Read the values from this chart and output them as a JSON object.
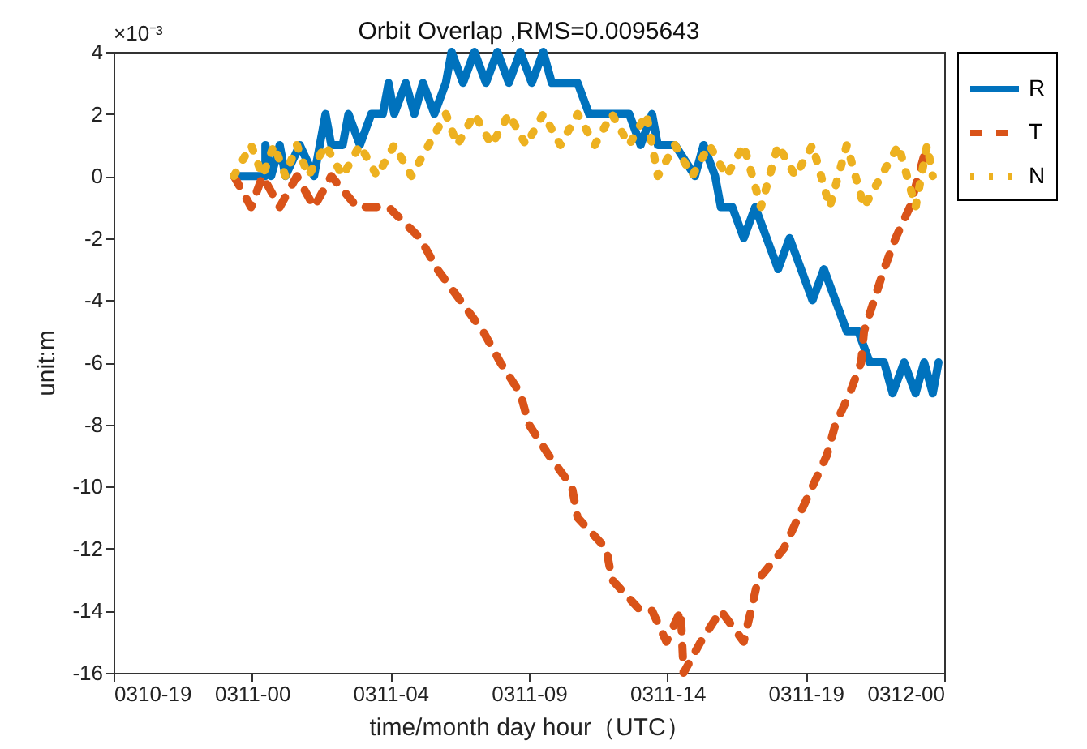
{
  "chart_data": {
    "type": "line",
    "title": "Orbit Overlap ,RMS=0.0095643",
    "xlabel": "time/month day hour（UTC）",
    "ylabel": "unit:m",
    "annotations": [
      "×10⁻³"
    ],
    "xlim": [
      "--03-10T19:00",
      "--03-12T00:00"
    ],
    "xticks": [
      {
        "value": "--03-10T19:00",
        "label": "0310-19"
      },
      {
        "value": "--03-10T23:50",
        "label": "0311-00"
      },
      {
        "value": "--03-11T04:40",
        "label": "0311-04"
      },
      {
        "value": "--03-11T09:30",
        "label": "0311-09"
      },
      {
        "value": "--03-11T14:20",
        "label": "0311-14"
      },
      {
        "value": "--03-11T19:10",
        "label": "0311-19"
      },
      {
        "value": "--03-12T00:00",
        "label": "0312-00"
      }
    ],
    "ylim": [
      -16,
      4
    ],
    "yticks": [
      -16,
      -14,
      -12,
      -10,
      -8,
      -6,
      -4,
      -2,
      0,
      2,
      4
    ],
    "legend": "top right",
    "series": [
      {
        "name": "R",
        "color": "#0072bd",
        "line_style": "solid",
        "x": [
          "--03-10T23:12",
          "--03-11T00:18",
          "--03-11T00:18",
          "--03-11T00:30",
          "--03-11T00:48",
          "--03-11T01:00",
          "--03-11T01:30",
          "--03-11T02:00",
          "--03-11T02:24",
          "--03-11T02:36",
          "--03-11T03:00",
          "--03-11T03:12",
          "--03-11T03:36",
          "--03-11T04:00",
          "--03-11T04:24",
          "--03-11T04:36",
          "--03-11T04:48",
          "--03-11T05:12",
          "--03-11T05:30",
          "--03-11T05:48",
          "--03-11T06:12",
          "--03-11T06:36",
          "--03-11T06:48",
          "--03-11T07:12",
          "--03-11T07:36",
          "--03-11T08:00",
          "--03-11T08:24",
          "--03-11T08:48",
          "--03-11T09:12",
          "--03-11T09:36",
          "--03-11T10:00",
          "--03-11T10:18",
          "--03-11T10:48",
          "--03-11T11:12",
          "--03-11T11:36",
          "--03-11T12:12",
          "--03-11T13:00",
          "--03-11T13:24",
          "--03-11T13:48",
          "--03-11T14:00",
          "--03-11T14:36",
          "--03-11T15:18",
          "--03-11T15:36",
          "--03-11T16:00",
          "--03-11T16:12",
          "--03-11T16:36",
          "--03-11T17:00",
          "--03-11T17:24",
          "--03-11T17:48",
          "--03-11T18:12",
          "--03-11T18:36",
          "--03-11T19:00",
          "--03-11T19:24",
          "--03-11T19:48",
          "--03-11T20:12",
          "--03-11T20:36",
          "--03-11T21:00",
          "--03-11T21:24",
          "--03-11T21:54",
          "--03-11T22:12",
          "--03-11T22:36",
          "--03-11T23:00",
          "--03-11T23:18",
          "--03-11T23:36",
          "--03-11T23:48"
        ],
        "values": [
          0,
          0,
          1,
          0,
          1,
          0,
          1,
          0,
          2,
          1,
          1,
          2,
          1,
          2,
          2,
          3,
          2,
          3,
          2,
          3,
          2,
          3,
          4,
          3,
          4,
          3,
          4,
          3,
          4,
          3,
          4,
          3,
          3,
          3,
          2,
          2,
          2,
          1,
          2,
          1,
          1,
          0,
          1,
          0,
          -1,
          -1,
          -2,
          -1,
          -2,
          -3,
          -2,
          -3,
          -4,
          -3,
          -4,
          -5,
          -5,
          -6,
          -6,
          -7,
          -6,
          -7,
          -6,
          -7,
          -6
        ]
      },
      {
        "name": "T",
        "color": "#d95319",
        "line_style": "dashed",
        "x": [
          "--03-10T23:12",
          "--03-10T23:48",
          "--03-11T00:12",
          "--03-11T00:48",
          "--03-11T01:24",
          "--03-11T02:00",
          "--03-11T02:36",
          "--03-11T03:30",
          "--03-11T04:36",
          "--03-11T05:42",
          "--03-11T06:18",
          "--03-11T07:06",
          "--03-11T07:54",
          "--03-11T08:30",
          "--03-11T09:12",
          "--03-11T09:30",
          "--03-11T10:12",
          "--03-11T11:00",
          "--03-11T11:12",
          "--03-11T12:12",
          "--03-11T12:24",
          "--03-11T13:24",
          "--03-11T13:48",
          "--03-11T14:18",
          "--03-11T14:48",
          "--03-11T14:54",
          "--03-11T15:30",
          "--03-11T16:12",
          "--03-11T17:00",
          "--03-11T17:30",
          "--03-11T18:24",
          "--03-11T18:54",
          "--03-11T19:24",
          "--03-11T19:54",
          "--03-11T20:12",
          "--03-11T20:42",
          "--03-11T21:06",
          "--03-11T21:12",
          "--03-11T21:54",
          "--03-11T22:18",
          "--03-11T22:48",
          "--03-11T23:06",
          "--03-11T23:24"
        ],
        "values": [
          0,
          -1,
          0,
          -1,
          0,
          -1,
          0,
          -1,
          -1,
          -2,
          -3,
          -4,
          -5,
          -6,
          -7,
          -8,
          -9,
          -10,
          -11,
          -12,
          -13,
          -14,
          -14,
          -15,
          -14,
          -16,
          -15,
          -14,
          -15,
          -13,
          -12,
          -11,
          -10,
          -9,
          -8,
          -7,
          -6,
          -5,
          -3,
          -2,
          -1,
          0,
          1
        ]
      },
      {
        "name": "N",
        "color": "#edb120",
        "line_style": "dotted",
        "x": [
          "--03-10T23:12",
          "--03-10T23:48",
          "--03-11T00:12",
          "--03-11T00:36",
          "--03-11T01:00",
          "--03-11T01:24",
          "--03-11T01:48",
          "--03-11T02:24",
          "--03-11T03:00",
          "--03-11T03:36",
          "--03-11T04:12",
          "--03-11T04:48",
          "--03-11T05:24",
          "--03-11T06:00",
          "--03-11T06:36",
          "--03-11T07:00",
          "--03-11T07:36",
          "--03-11T08:12",
          "--03-11T08:48",
          "--03-11T09:24",
          "--03-11T10:00",
          "--03-11T10:36",
          "--03-11T11:12",
          "--03-11T11:48",
          "--03-11T12:24",
          "--03-11T13:00",
          "--03-11T13:36",
          "--03-11T14:00",
          "--03-11T14:36",
          "--03-11T15:12",
          "--03-11T15:48",
          "--03-11T16:24",
          "--03-11T17:00",
          "--03-11T17:36",
          "--03-11T18:12",
          "--03-11T18:48",
          "--03-11T19:24",
          "--03-11T20:00",
          "--03-11T20:36",
          "--03-11T21:12",
          "--03-11T21:48",
          "--03-11T22:24",
          "--03-11T23:00",
          "--03-11T23:24",
          "--03-11T23:36"
        ],
        "values": [
          0,
          1,
          0,
          1,
          0,
          1,
          0,
          1,
          0,
          1,
          0,
          1,
          0,
          1,
          2,
          1,
          2,
          1,
          2,
          1,
          2,
          1,
          2,
          1,
          2,
          1,
          2,
          0,
          1,
          0,
          1,
          0,
          1,
          -1,
          1,
          0,
          1,
          -1,
          1,
          -1,
          0,
          1,
          -1,
          1,
          0
        ]
      }
    ]
  }
}
